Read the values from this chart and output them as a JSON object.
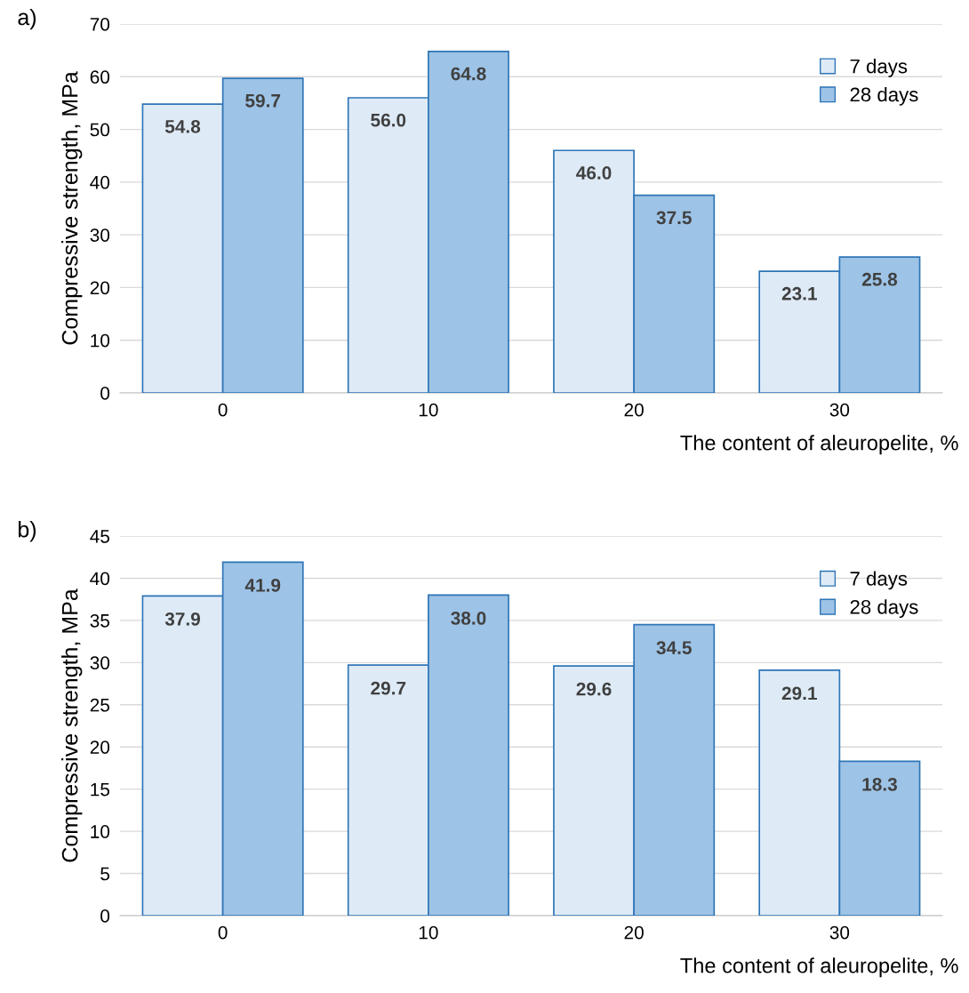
{
  "chart_data": [
    {
      "type": "bar",
      "title": "a)",
      "xlabel": "The content of aleuropelite, %",
      "ylabel": "Compressive strength, MPa",
      "categories": [
        "0",
        "10",
        "20",
        "30"
      ],
      "series": [
        {
          "name": "7 days",
          "color": "#deebf7",
          "values": [
            54.8,
            56.0,
            46.0,
            23.1
          ],
          "value_labels": [
            "54.8",
            "56.0",
            "46.0",
            "23.1"
          ]
        },
        {
          "name": "28 days",
          "color": "#9dc3e6",
          "values": [
            59.7,
            64.8,
            37.5,
            25.8
          ],
          "value_labels": [
            "59.7",
            "64.8",
            "37.5",
            "25.8"
          ]
        }
      ],
      "ylim": [
        0,
        70
      ],
      "yticks": [
        0,
        10,
        20,
        30,
        40,
        50,
        60,
        70
      ],
      "grid": "y",
      "legend": "top right"
    },
    {
      "type": "bar",
      "title": "b)",
      "xlabel": "The content of aleuropelite, %",
      "ylabel": "Compressive strength, MPa",
      "categories": [
        "0",
        "10",
        "20",
        "30"
      ],
      "series": [
        {
          "name": "7 days",
          "color": "#deebf7",
          "values": [
            37.9,
            29.7,
            29.6,
            29.1
          ],
          "value_labels": [
            "37.9",
            "29.7",
            "29.6",
            "29.1"
          ]
        },
        {
          "name": "28 days",
          "color": "#9dc3e6",
          "values": [
            41.9,
            38.0,
            34.5,
            18.3
          ],
          "value_labels": [
            "41.9",
            "38.0",
            "34.5",
            "18.3"
          ]
        }
      ],
      "ylim": [
        0,
        45
      ],
      "yticks": [
        0,
        5,
        10,
        15,
        20,
        25,
        30,
        35,
        40,
        45
      ],
      "grid": "y",
      "legend": "top right"
    }
  ]
}
